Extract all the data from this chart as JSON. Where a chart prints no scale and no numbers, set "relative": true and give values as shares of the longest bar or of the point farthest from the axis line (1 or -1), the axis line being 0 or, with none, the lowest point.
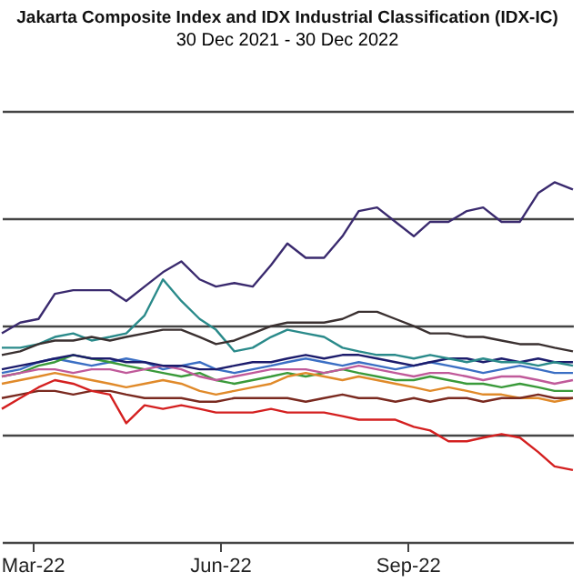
{
  "chart_data": {
    "type": "line",
    "title": "Jakarta Composite Index and IDX Industrial Classification (IDX-IC)",
    "subtitle": "30 Dec 2021 - 30 Dec 2022",
    "relative": true,
    "grid": "y",
    "x": [
      "2022-02-14",
      "2022-02-23",
      "2022-03-04",
      "2022-03-12",
      "2022-03-21",
      "2022-03-30",
      "2022-04-08",
      "2022-04-16",
      "2022-04-25",
      "2022-05-04",
      "2022-05-13",
      "2022-05-22",
      "2022-05-30",
      "2022-06-08",
      "2022-06-17",
      "2022-06-26",
      "2022-07-04",
      "2022-07-13",
      "2022-07-22",
      "2022-07-31",
      "2022-08-08",
      "2022-08-17",
      "2022-08-26",
      "2022-09-04",
      "2022-09-12",
      "2022-09-21",
      "2022-09-30",
      "2022-10-08",
      "2022-10-17",
      "2022-10-26",
      "2022-11-04",
      "2022-11-12",
      "2022-11-21"
    ],
    "xlim": [
      "2022-02-14",
      "2022-11-21"
    ],
    "xticks": [
      {
        "value": "2022-03-01",
        "label": "Mar-22"
      },
      {
        "value": "2022-06-01",
        "label": "Jun-22"
      },
      {
        "value": "2022-09-01",
        "label": "Sep-22"
      }
    ],
    "series": [
      {
        "color": "#3b6fc4",
        "values": [
          0.47,
          0.48,
          0.5,
          0.51,
          0.5,
          0.49,
          0.5,
          0.51,
          0.5,
          0.48,
          0.49,
          0.5,
          0.48,
          0.47,
          0.48,
          0.49,
          0.5,
          0.51,
          0.5,
          0.49,
          0.5,
          0.49,
          0.48,
          0.49,
          0.5,
          0.49,
          0.48,
          0.47,
          0.48,
          0.49,
          0.48,
          0.47,
          0.47
        ]
      },
      {
        "color": "#3a9a3a",
        "values": [
          0.46,
          0.47,
          0.49,
          0.5,
          0.52,
          0.51,
          0.5,
          0.49,
          0.48,
          0.47,
          0.46,
          0.47,
          0.45,
          0.44,
          0.45,
          0.46,
          0.47,
          0.46,
          0.47,
          0.48,
          0.47,
          0.46,
          0.45,
          0.45,
          0.46,
          0.45,
          0.44,
          0.44,
          0.43,
          0.44,
          0.43,
          0.42,
          0.42
        ]
      },
      {
        "color": "#e08a2a",
        "values": [
          0.44,
          0.45,
          0.46,
          0.47,
          0.46,
          0.45,
          0.44,
          0.43,
          0.44,
          0.45,
          0.44,
          0.42,
          0.41,
          0.42,
          0.43,
          0.44,
          0.46,
          0.47,
          0.46,
          0.45,
          0.46,
          0.45,
          0.44,
          0.43,
          0.42,
          0.43,
          0.42,
          0.41,
          0.41,
          0.4,
          0.4,
          0.39,
          0.4
        ]
      },
      {
        "color": "#c05a9a",
        "values": [
          0.46,
          0.47,
          0.48,
          0.48,
          0.47,
          0.48,
          0.48,
          0.47,
          0.48,
          0.49,
          0.48,
          0.46,
          0.45,
          0.46,
          0.47,
          0.48,
          0.48,
          0.48,
          0.47,
          0.48,
          0.49,
          0.48,
          0.47,
          0.46,
          0.47,
          0.47,
          0.46,
          0.45,
          0.46,
          0.46,
          0.45,
          0.44,
          0.45
        ]
      },
      {
        "color": "#1c1c6c",
        "values": [
          0.48,
          0.49,
          0.5,
          0.51,
          0.52,
          0.51,
          0.51,
          0.5,
          0.5,
          0.49,
          0.49,
          0.48,
          0.48,
          0.49,
          0.5,
          0.5,
          0.51,
          0.52,
          0.51,
          0.52,
          0.52,
          0.51,
          0.5,
          0.49,
          0.5,
          0.51,
          0.51,
          0.5,
          0.51,
          0.5,
          0.51,
          0.5,
          0.5
        ]
      },
      {
        "color": "#7a2a20",
        "values": [
          0.4,
          0.41,
          0.42,
          0.42,
          0.41,
          0.42,
          0.42,
          0.41,
          0.4,
          0.4,
          0.4,
          0.39,
          0.39,
          0.4,
          0.4,
          0.4,
          0.4,
          0.39,
          0.4,
          0.41,
          0.4,
          0.4,
          0.39,
          0.4,
          0.39,
          0.4,
          0.4,
          0.39,
          0.4,
          0.4,
          0.41,
          0.4,
          0.4
        ]
      },
      {
        "color": "#2a8a8a",
        "values": [
          0.54,
          0.54,
          0.55,
          0.57,
          0.58,
          0.56,
          0.57,
          0.58,
          0.63,
          0.73,
          0.67,
          0.62,
          0.59,
          0.53,
          0.54,
          0.57,
          0.59,
          0.58,
          0.57,
          0.54,
          0.53,
          0.52,
          0.52,
          0.51,
          0.52,
          0.51,
          0.5,
          0.51,
          0.5,
          0.5,
          0.49,
          0.5,
          0.49
        ]
      },
      {
        "color": "#3a3030",
        "values": [
          0.52,
          0.53,
          0.55,
          0.56,
          0.56,
          0.57,
          0.56,
          0.57,
          0.58,
          0.59,
          0.59,
          0.57,
          0.55,
          0.56,
          0.58,
          0.6,
          0.61,
          0.61,
          0.61,
          0.62,
          0.64,
          0.64,
          0.62,
          0.6,
          0.58,
          0.58,
          0.57,
          0.57,
          0.56,
          0.55,
          0.55,
          0.54,
          0.53
        ]
      },
      {
        "color": "#d42020",
        "values": [
          0.37,
          0.4,
          0.43,
          0.45,
          0.44,
          0.42,
          0.41,
          0.33,
          0.38,
          0.37,
          0.38,
          0.37,
          0.36,
          0.36,
          0.36,
          0.37,
          0.36,
          0.36,
          0.36,
          0.35,
          0.34,
          0.34,
          0.34,
          0.32,
          0.31,
          0.28,
          0.28,
          0.29,
          0.3,
          0.29,
          0.25,
          0.21,
          0.2
        ]
      },
      {
        "color": "#3a2a6e",
        "values": [
          0.58,
          0.61,
          0.62,
          0.69,
          0.7,
          0.7,
          0.7,
          0.67,
          0.71,
          0.75,
          0.78,
          0.73,
          0.71,
          0.72,
          0.71,
          0.77,
          0.83,
          0.79,
          0.79,
          0.85,
          0.92,
          0.93,
          0.89,
          0.85,
          0.89,
          0.89,
          0.92,
          0.93,
          0.89,
          0.89,
          0.97,
          1.0,
          0.98
        ]
      }
    ]
  }
}
